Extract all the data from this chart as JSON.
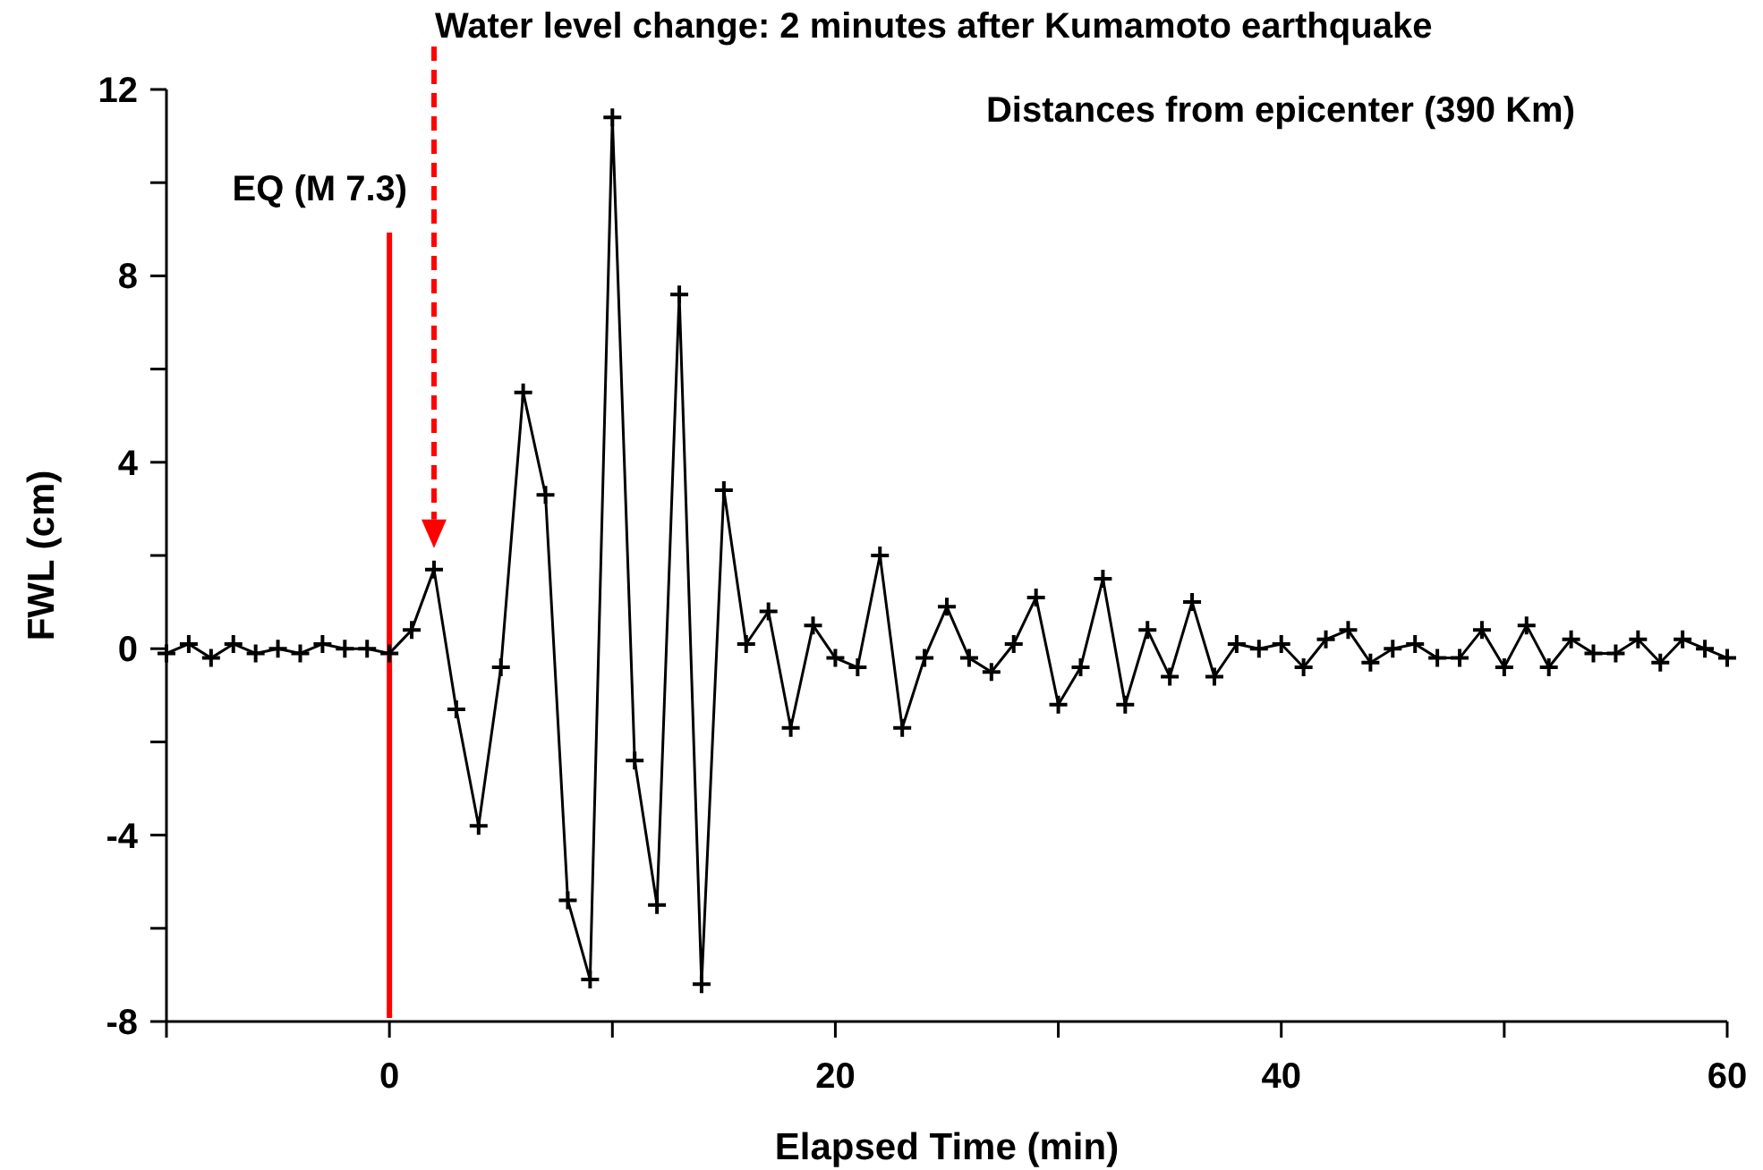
{
  "chart_data": {
    "type": "line",
    "xlabel": "Elapsed Time (min)",
    "ylabel": "FWL (cm)",
    "x": [
      -10,
      -9,
      -8,
      -7,
      -6,
      -5,
      -4,
      -3,
      -2,
      -1,
      0,
      1,
      2,
      3,
      4,
      5,
      6,
      7,
      8,
      9,
      10,
      11,
      12,
      13,
      14,
      15,
      16,
      17,
      18,
      19,
      20,
      21,
      22,
      23,
      24,
      25,
      26,
      27,
      28,
      29,
      30,
      31,
      32,
      33,
      34,
      35,
      36,
      37,
      38,
      39,
      40,
      41,
      42,
      43,
      44,
      45,
      46,
      47,
      48,
      49,
      50,
      51,
      52,
      53,
      54,
      55,
      56,
      57,
      58,
      59,
      60
    ],
    "series": [
      {
        "color": "#000000",
        "values": [
          -0.1,
          0.1,
          -0.2,
          0.1,
          -0.1,
          0,
          -0.1,
          0.1,
          0,
          0,
          -0.1,
          0.4,
          1.7,
          -1.3,
          -3.8,
          -0.4,
          5.5,
          3.3,
          -5.4,
          -7.1,
          11.4,
          -2.4,
          -5.5,
          7.6,
          -7.2,
          3.4,
          0.1,
          0.8,
          -1.7,
          0.5,
          -0.2,
          -0.4,
          2.0,
          -1.7,
          -0.2,
          0.9,
          -0.2,
          -0.5,
          0.1,
          1.1,
          -1.2,
          -0.4,
          1.5,
          -1.2,
          0.4,
          -0.6,
          1.0,
          -0.6,
          0.1,
          0,
          0.1,
          -0.4,
          0.2,
          0.4,
          -0.3,
          0,
          0.1,
          -0.2,
          -0.2,
          0.4,
          -0.4,
          0.5,
          -0.4,
          0.2,
          -0.1,
          -0.1,
          0.2,
          -0.3,
          0.2,
          0,
          -0.2
        ]
      }
    ],
    "xlim": [
      -10,
      60
    ],
    "xticks": [
      {
        "value": -10,
        "label": null
      },
      0,
      {
        "value": 10,
        "label": null
      },
      20,
      {
        "value": 30,
        "label": null
      },
      40,
      {
        "value": 50,
        "label": null
      },
      60
    ],
    "ylim": [
      -8,
      12
    ],
    "yticks": [
      -8,
      {
        "value": -6,
        "label": null
      },
      -4,
      {
        "value": -2,
        "label": null
      },
      0,
      {
        "value": 2,
        "label": null
      },
      4,
      {
        "value": 6,
        "label": null
      },
      8,
      {
        "value": 10,
        "label": null
      },
      12
    ],
    "marker": "cross",
    "line_style": "solid",
    "grid": false,
    "ref_lines": [
      {
        "axis": "x",
        "value": 0,
        "label": "EQ (M 7.3)",
        "color": "#ff0000",
        "line_style": "solid"
      },
      {
        "axis": "x",
        "value": 2,
        "color": "#ff0000",
        "line_style": "dashed"
      }
    ],
    "annotations": [
      "Water level change: 2 minutes after Kumamoto earthquake",
      "Distances from epicenter (390 Km)"
    ]
  }
}
